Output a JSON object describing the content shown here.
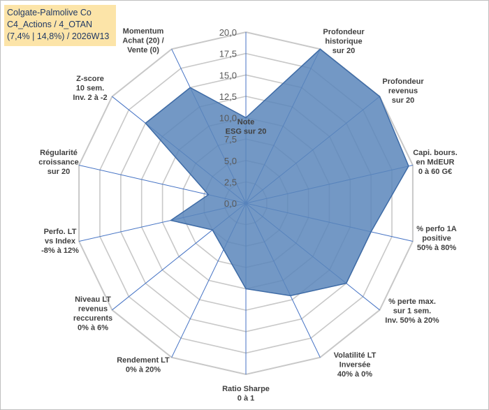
{
  "title_box": {
    "line1": "Colgate-Palmolive Co",
    "line2": "C4_Actions / 4_OTAN",
    "line3": "(7,4% | 14,8%) / 2026W13"
  },
  "colors": {
    "fill": "#5b86bb",
    "stroke": "#3e6ba6",
    "spoke": "#4472c4",
    "grid": "#c8c8c8",
    "title_bg": "#fce4a8"
  },
  "chart_data": {
    "type": "radar",
    "rmin": 0,
    "rmax": 20,
    "ticks": [
      "0,0",
      "2,5",
      "5,0",
      "7,5",
      "10,0",
      "12,5",
      "15,0",
      "17,5",
      "20,0"
    ],
    "axes": [
      {
        "label": [
          "Note",
          "ESG sur 20"
        ],
        "value": 10.0
      },
      {
        "label": [
          "Profondeur",
          "historique",
          "sur 20"
        ],
        "value": 20.0
      },
      {
        "label": [
          "Profondeur",
          "revenus",
          "sur 20"
        ],
        "value": 20.0
      },
      {
        "label": [
          "Capi. bours.",
          "en MdEUR",
          "0 à 60 G€"
        ],
        "value": 19.5
      },
      {
        "label": [
          "% perfo 1A",
          "positive",
          "50% à 80%"
        ],
        "value": 15.0
      },
      {
        "label": [
          "% perte max.",
          "sur 1 sem.",
          "Inv. 50% à 20%"
        ],
        "value": 15.0
      },
      {
        "label": [
          "Volatilité LT",
          "Inversée",
          "40% à 0%"
        ],
        "value": 12.0
      },
      {
        "label": [
          "Ratio Sharpe",
          "0 à 1"
        ],
        "value": 10.0
      },
      {
        "label": [
          "Rendement LT",
          "0% à 20%"
        ],
        "value": 6.0
      },
      {
        "label": [
          "Niveau LT",
          "revenus",
          "reccurents",
          "0% à 6%"
        ],
        "value": 5.0
      },
      {
        "label": [
          "Perfo. LT",
          "vs Index",
          "-8% à 12%"
        ],
        "value": 9.0
      },
      {
        "label": [
          "Régularité",
          "croissance",
          "sur 20"
        ],
        "value": 4.5
      },
      {
        "label": [
          "Z-score",
          "10 sem.",
          "Inv. 2 à -2"
        ],
        "value": 15.0
      },
      {
        "label": [
          "Momentum",
          "Achat (20) /",
          "Vente (0)"
        ],
        "value": 15.0
      }
    ]
  }
}
